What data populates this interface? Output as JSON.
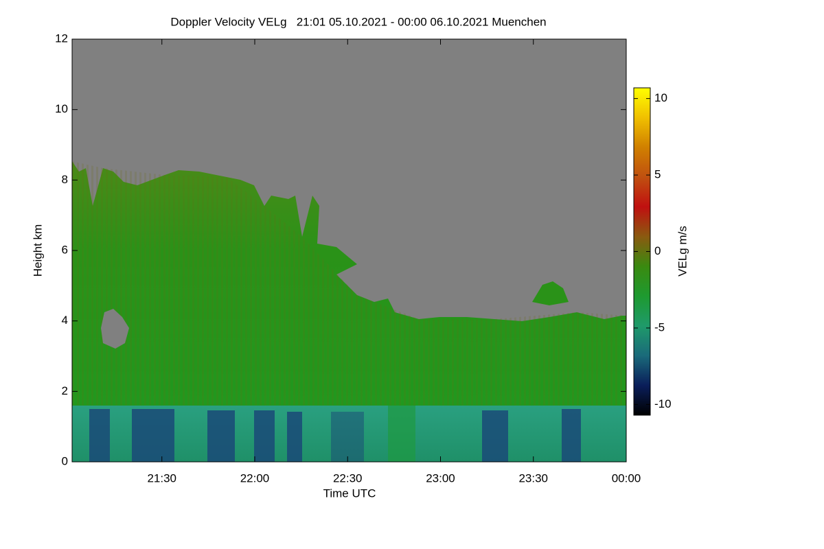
{
  "chart_data": {
    "type": "heatmap",
    "title": "Doppler Velocity VELg   21:01 05.10.2021 - 00:00 06.10.2021 Muenchen",
    "xlabel": "Time UTC",
    "ylabel": "Height km",
    "colorbar_label": "VELg m/s",
    "xlim": [
      1261,
      1440
    ],
    "xticks": [
      {
        "value": 1290,
        "label": "21:30"
      },
      {
        "value": 1320,
        "label": "22:00"
      },
      {
        "value": 1350,
        "label": "22:30"
      },
      {
        "value": 1380,
        "label": "23:00"
      },
      {
        "value": 1410,
        "label": "23:30"
      },
      {
        "value": 1440,
        "label": "00:00"
      }
    ],
    "ylim": [
      0,
      12
    ],
    "yticks": [
      0,
      2,
      4,
      6,
      8,
      10,
      12
    ],
    "clim": [
      -10.7,
      10.7
    ],
    "cticks": [
      -10,
      -5,
      0,
      5,
      10
    ],
    "colormap": [
      "#000000",
      "#0a1e5a",
      "#1a6a7a",
      "#1f9a6a",
      "#1e9a30",
      "#3a8a10",
      "#8a5a10",
      "#c01010",
      "#c05010",
      "#d08000",
      "#f0c000",
      "#ffff00"
    ]
  }
}
